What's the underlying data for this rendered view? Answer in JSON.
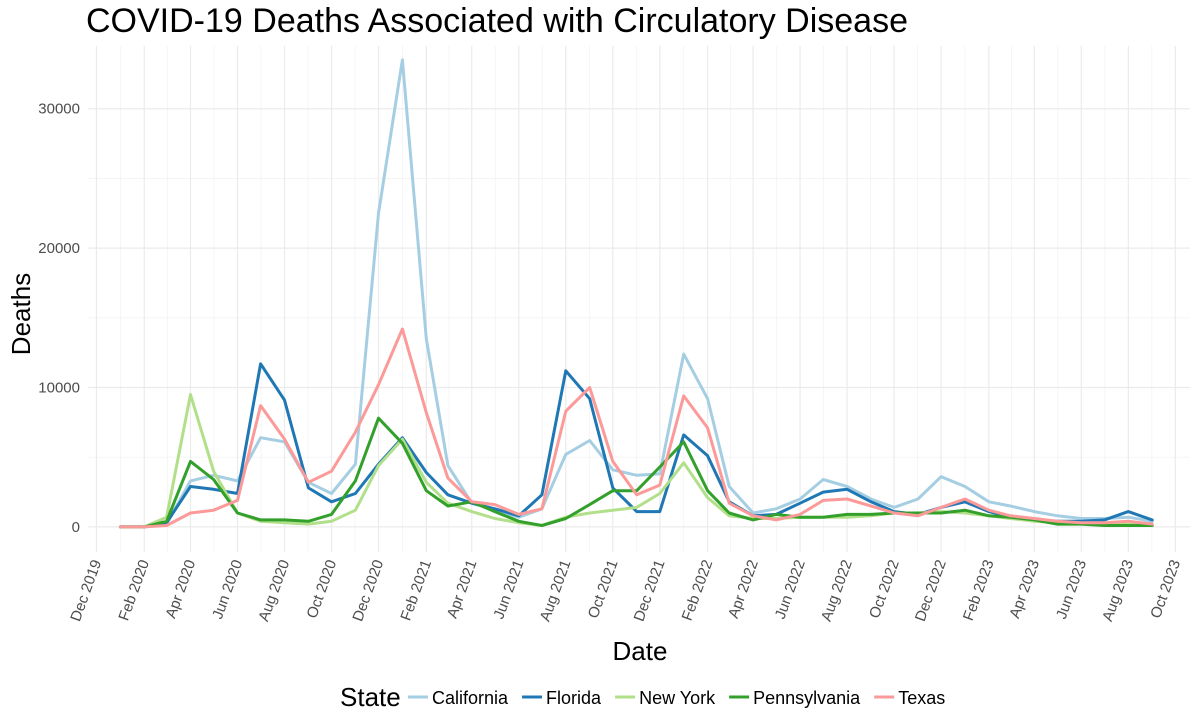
{
  "chart_data": {
    "type": "line",
    "title": "COVID-19 Deaths Associated with Circulatory Disease",
    "xlabel": "Date",
    "ylabel": "Deaths",
    "x_range": [
      "2019-11-20",
      "2023-10-20"
    ],
    "ylim": [
      -1800,
      34500
    ],
    "yticks": [
      0,
      10000,
      20000,
      30000
    ],
    "ytick_labels": [
      "0",
      "10000",
      "20000",
      "30000"
    ],
    "xticks": [
      {
        "date": "2019-12-01",
        "label": "Dec 2019"
      },
      {
        "date": "2020-02-01",
        "label": "Feb 2020"
      },
      {
        "date": "2020-04-01",
        "label": "Apr 2020"
      },
      {
        "date": "2020-06-01",
        "label": "Jun 2020"
      },
      {
        "date": "2020-08-01",
        "label": "Aug 2020"
      },
      {
        "date": "2020-10-01",
        "label": "Oct 2020"
      },
      {
        "date": "2020-12-01",
        "label": "Dec 2020"
      },
      {
        "date": "2021-02-01",
        "label": "Feb 2021"
      },
      {
        "date": "2021-04-01",
        "label": "Apr 2021"
      },
      {
        "date": "2021-06-01",
        "label": "Jun 2021"
      },
      {
        "date": "2021-08-01",
        "label": "Aug 2021"
      },
      {
        "date": "2021-10-01",
        "label": "Oct 2021"
      },
      {
        "date": "2021-12-01",
        "label": "Dec 2021"
      },
      {
        "date": "2022-02-01",
        "label": "Feb 2022"
      },
      {
        "date": "2022-04-01",
        "label": "Apr 2022"
      },
      {
        "date": "2022-06-01",
        "label": "Jun 2022"
      },
      {
        "date": "2022-08-01",
        "label": "Aug 2022"
      },
      {
        "date": "2022-10-01",
        "label": "Oct 2022"
      },
      {
        "date": "2022-12-01",
        "label": "Dec 2022"
      },
      {
        "date": "2023-02-01",
        "label": "Feb 2023"
      },
      {
        "date": "2023-04-01",
        "label": "Apr 2023"
      },
      {
        "date": "2023-06-01",
        "label": "Jun 2023"
      },
      {
        "date": "2023-08-01",
        "label": "Aug 2023"
      },
      {
        "date": "2023-10-01",
        "label": "Oct 2023"
      }
    ],
    "grid": true,
    "legend_position": "bottom",
    "legend_title": "State",
    "x": [
      "2020-01-01",
      "2020-02-01",
      "2020-03-01",
      "2020-04-01",
      "2020-05-01",
      "2020-06-01",
      "2020-07-01",
      "2020-08-01",
      "2020-09-01",
      "2020-10-01",
      "2020-11-01",
      "2020-12-01",
      "2021-01-01",
      "2021-02-01",
      "2021-03-01",
      "2021-04-01",
      "2021-05-01",
      "2021-06-01",
      "2021-07-01",
      "2021-08-01",
      "2021-09-01",
      "2021-10-01",
      "2021-11-01",
      "2021-12-01",
      "2022-01-01",
      "2022-02-01",
      "2022-03-01",
      "2022-04-01",
      "2022-05-01",
      "2022-06-01",
      "2022-07-01",
      "2022-08-01",
      "2022-09-01",
      "2022-10-01",
      "2022-11-01",
      "2022-12-01",
      "2023-01-01",
      "2023-02-01",
      "2023-03-01",
      "2023-04-01",
      "2023-05-01",
      "2023-06-01",
      "2023-07-01",
      "2023-08-01",
      "2023-09-01"
    ],
    "series": [
      {
        "name": "California",
        "color": "#a6cee3",
        "values": [
          0,
          0,
          200,
          3300,
          3700,
          3300,
          6400,
          6100,
          3200,
          2400,
          4500,
          22500,
          33500,
          13500,
          4400,
          1700,
          1200,
          700,
          1300,
          5200,
          6200,
          4100,
          3700,
          3800,
          12400,
          9200,
          2900,
          1000,
          1300,
          2000,
          3400,
          2900,
          2000,
          1400,
          2000,
          3600,
          2900,
          1800,
          1500,
          1100,
          800,
          600,
          600,
          700,
          400
        ]
      },
      {
        "name": "Florida",
        "color": "#1f78b4",
        "values": [
          0,
          0,
          300,
          2900,
          2700,
          2400,
          11700,
          9100,
          2800,
          1800,
          2400,
          4500,
          6400,
          3900,
          2300,
          1700,
          1300,
          800,
          2300,
          11200,
          9200,
          2800,
          1100,
          1100,
          6600,
          5100,
          1800,
          800,
          900,
          1700,
          2500,
          2700,
          1800,
          1100,
          900,
          1400,
          1800,
          1100,
          700,
          500,
          400,
          400,
          500,
          1100,
          500
        ]
      },
      {
        "name": "New York",
        "color": "#b2df8a",
        "values": [
          0,
          0,
          700,
          9500,
          4000,
          1000,
          400,
          300,
          200,
          400,
          1200,
          4400,
          6300,
          3200,
          1700,
          1100,
          600,
          300,
          100,
          700,
          1000,
          1200,
          1400,
          2400,
          4600,
          2100,
          800,
          600,
          600,
          700,
          700,
          700,
          800,
          1000,
          1000,
          1100,
          1000,
          800,
          600,
          400,
          300,
          200,
          200,
          200,
          100
        ]
      },
      {
        "name": "Pennsylvania",
        "color": "#33a02c",
        "values": [
          0,
          0,
          400,
          4700,
          3400,
          1000,
          500,
          500,
          400,
          900,
          3300,
          7800,
          6000,
          2600,
          1500,
          1800,
          1100,
          400,
          100,
          600,
          1600,
          2600,
          2600,
          4300,
          6100,
          2600,
          1000,
          500,
          900,
          700,
          700,
          900,
          900,
          1000,
          1000,
          1000,
          1200,
          800,
          700,
          500,
          200,
          200,
          100,
          100,
          100
        ]
      },
      {
        "name": "Texas",
        "color": "#fb9a99",
        "values": [
          0,
          0,
          100,
          1000,
          1200,
          1900,
          8700,
          6300,
          3200,
          4000,
          6800,
          10200,
          14200,
          8200,
          3500,
          1800,
          1600,
          900,
          1300,
          8300,
          10000,
          4700,
          2300,
          3000,
          9400,
          7100,
          1700,
          800,
          500,
          900,
          1900,
          2000,
          1500,
          1000,
          800,
          1400,
          2000,
          1200,
          800,
          600,
          400,
          300,
          300,
          400,
          200
        ]
      }
    ]
  }
}
